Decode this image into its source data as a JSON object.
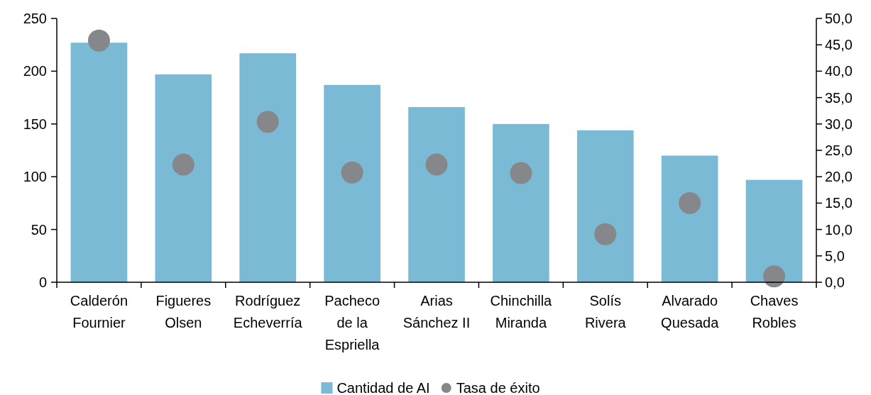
{
  "chart_data": {
    "type": "bar",
    "categories": [
      "Calderón Fournier",
      "Figueres Olsen",
      "Rodríguez Echeverría",
      "Pacheco de la Espriella",
      "Arias Sánchez II",
      "Chinchilla Miranda",
      "Solís Rivera",
      "Alvarado Quesada",
      "Chaves Robles"
    ],
    "series": [
      {
        "name": "Cantidad de AI",
        "color": "#7bbad4",
        "values": [
          227,
          197,
          217,
          187,
          166,
          150,
          144,
          120,
          97
        ]
      },
      {
        "name": "Tasa de éxito",
        "type": "scatter",
        "axis": "y2",
        "color": "#86878b",
        "values": [
          45.8,
          22.3,
          30.4,
          20.8,
          22.3,
          20.7,
          9.1,
          15.0,
          1.1
        ]
      }
    ],
    "ylim": [
      0,
      250
    ],
    "yticks": [
      0,
      50,
      100,
      150,
      200,
      250
    ],
    "y2lim": [
      0,
      50
    ],
    "y2ticks": [
      {
        "value": 0,
        "label": "0,0"
      },
      {
        "value": 5,
        "label": "5,0"
      },
      {
        "value": 10,
        "label": "10,0"
      },
      {
        "value": 15,
        "label": "15,0"
      },
      {
        "value": 20,
        "label": "20,0"
      },
      {
        "value": 25,
        "label": "25,0"
      },
      {
        "value": 30,
        "label": "30,0"
      },
      {
        "value": 35,
        "label": "35,0"
      },
      {
        "value": 40,
        "label": "40,0"
      },
      {
        "value": 45,
        "label": "45,0"
      },
      {
        "value": 50,
        "label": "50,0"
      }
    ],
    "marker": "circle",
    "legend": "bottom"
  }
}
